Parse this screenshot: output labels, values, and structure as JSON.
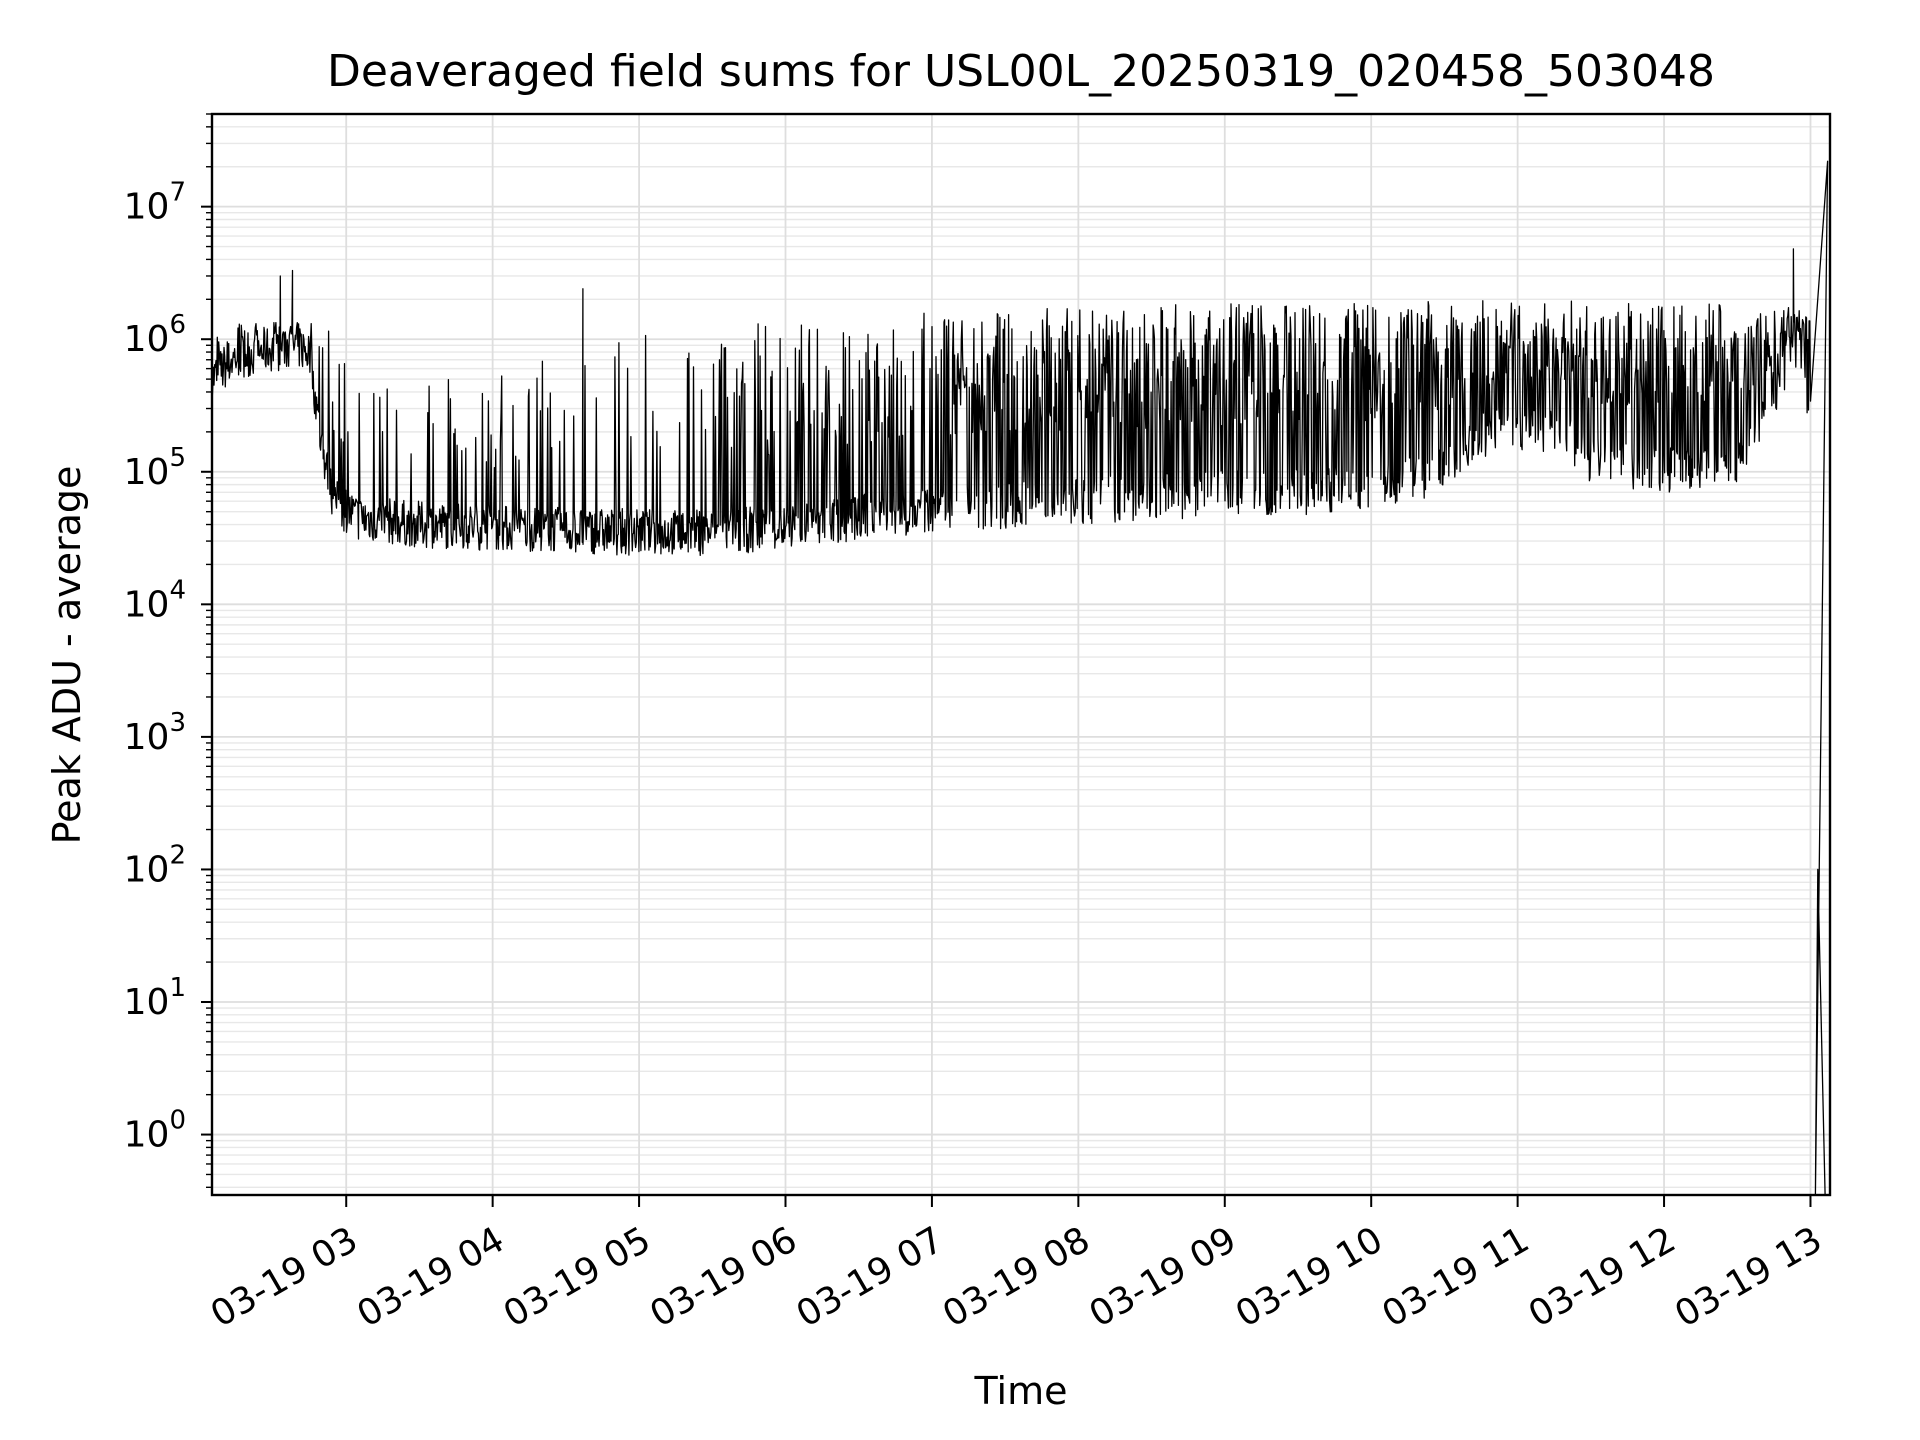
{
  "chart_data": {
    "type": "line",
    "title": "Deaveraged field sums for USL00L_20250319_020458_503048",
    "xlabel": "Time",
    "ylabel": "Peak ADU - average",
    "y_scale": "log",
    "ylim": [
      0.35,
      50000000
    ],
    "xlim": [
      "2025-03-19 02:05",
      "2025-03-19 13:08"
    ],
    "grid": true,
    "grid_minor": true,
    "x_ticks": [
      {
        "t": "2025-03-19 03:00",
        "label": "03-19 03"
      },
      {
        "t": "2025-03-19 04:00",
        "label": "03-19 04"
      },
      {
        "t": "2025-03-19 05:00",
        "label": "03-19 05"
      },
      {
        "t": "2025-03-19 06:00",
        "label": "03-19 06"
      },
      {
        "t": "2025-03-19 07:00",
        "label": "03-19 07"
      },
      {
        "t": "2025-03-19 08:00",
        "label": "03-19 08"
      },
      {
        "t": "2025-03-19 09:00",
        "label": "03-19 09"
      },
      {
        "t": "2025-03-19 10:00",
        "label": "03-19 10"
      },
      {
        "t": "2025-03-19 11:00",
        "label": "03-19 11"
      },
      {
        "t": "2025-03-19 12:00",
        "label": "03-19 12"
      },
      {
        "t": "2025-03-19 13:00",
        "label": "03-19 13"
      }
    ],
    "y_ticks": [
      {
        "value": 1,
        "base": "10",
        "exp": "0"
      },
      {
        "value": 10,
        "base": "10",
        "exp": "1"
      },
      {
        "value": 100,
        "base": "10",
        "exp": "2"
      },
      {
        "value": 1000,
        "base": "10",
        "exp": "3"
      },
      {
        "value": 10000,
        "base": "10",
        "exp": "4"
      },
      {
        "value": 100000,
        "base": "10",
        "exp": "5"
      },
      {
        "value": 1000000,
        "base": "10",
        "exp": "6"
      },
      {
        "value": 10000000,
        "base": "10",
        "exp": "7"
      }
    ],
    "series": [
      {
        "color": "#000000",
        "baseline": [
          [
            "2025-03-19 02:05",
            500000
          ],
          [
            "2025-03-19 02:15",
            750000
          ],
          [
            "2025-03-19 02:30",
            850000
          ],
          [
            "2025-03-19 02:40",
            900000
          ],
          [
            "2025-03-19 02:45",
            800000
          ],
          [
            "2025-03-19 02:50",
            150000
          ],
          [
            "2025-03-19 02:55",
            60000
          ],
          [
            "2025-03-19 03:05",
            45000
          ],
          [
            "2025-03-19 03:30",
            40000
          ],
          [
            "2025-03-19 04:00",
            38000
          ],
          [
            "2025-03-19 04:30",
            36000
          ],
          [
            "2025-03-19 05:00",
            35000
          ],
          [
            "2025-03-19 05:30",
            35000
          ],
          [
            "2025-03-19 06:00",
            38000
          ],
          [
            "2025-03-19 06:30",
            45000
          ],
          [
            "2025-03-19 07:00",
            52000
          ],
          [
            "2025-03-19 07:30",
            56000
          ],
          [
            "2025-03-19 08:00",
            60000
          ],
          [
            "2025-03-19 08:30",
            65000
          ],
          [
            "2025-03-19 09:00",
            68000
          ],
          [
            "2025-03-19 09:30",
            70000
          ],
          [
            "2025-03-19 10:00",
            80000
          ],
          [
            "2025-03-19 10:30",
            100000
          ],
          [
            "2025-03-19 10:45",
            190000
          ],
          [
            "2025-03-19 11:00",
            220000
          ],
          [
            "2025-03-19 11:20",
            190000
          ],
          [
            "2025-03-19 11:30",
            120000
          ],
          [
            "2025-03-19 12:00",
            100000
          ],
          [
            "2025-03-19 12:30",
            120000
          ],
          [
            "2025-03-19 12:45",
            400000
          ],
          [
            "2025-03-19 12:55",
            900000
          ],
          [
            "2025-03-19 13:00",
            300000
          ]
        ],
        "spike_ceiling": [
          [
            "2025-03-19 02:05",
            1200000
          ],
          [
            "2025-03-19 02:45",
            1600000
          ],
          [
            "2025-03-19 03:00",
            1000000
          ],
          [
            "2025-03-19 03:30",
            500000
          ],
          [
            "2025-03-19 04:00",
            600000
          ],
          [
            "2025-03-19 05:00",
            1100000
          ],
          [
            "2025-03-19 06:00",
            1500000
          ],
          [
            "2025-03-19 07:00",
            1700000
          ],
          [
            "2025-03-19 08:00",
            1800000
          ],
          [
            "2025-03-19 09:00",
            1900000
          ],
          [
            "2025-03-19 10:00",
            1950000
          ],
          [
            "2025-03-19 12:00",
            1950000
          ],
          [
            "2025-03-19 13:00",
            1700000
          ]
        ],
        "peaks": [
          [
            "2025-03-19 02:33",
            3000000
          ],
          [
            "2025-03-19 02:38",
            3300000
          ],
          [
            "2025-03-19 04:37",
            2400000
          ],
          [
            "2025-03-19 12:53",
            4800000
          ],
          [
            "2025-03-19 13:07",
            22000000
          ]
        ],
        "dropouts": [
          [
            "2025-03-19 13:02",
            0.35
          ],
          [
            "2025-03-19 13:06",
            0.35
          ]
        ]
      }
    ]
  }
}
